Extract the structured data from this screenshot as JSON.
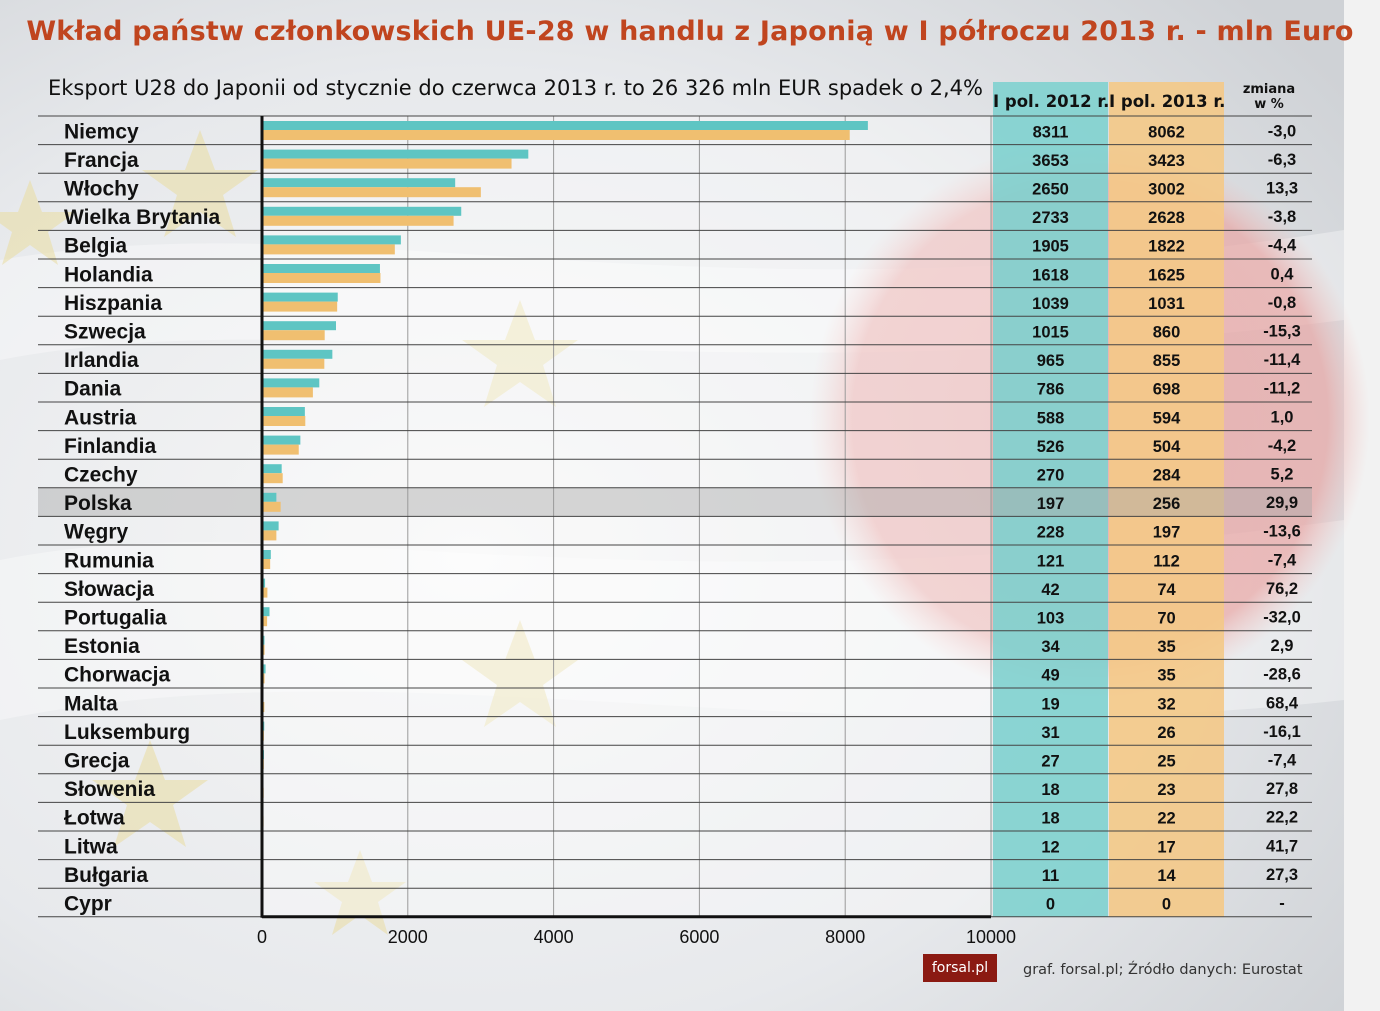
{
  "title": "Wkład państw członkowskich UE-28 w handlu z Japonią w I półroczu 2013 r. - mln Euro",
  "subtitle": "Eksport U28 do Japonii od stycznie do czerwca 2013 r. to 26 326 mln EUR spadek o 2,4%",
  "columns": {
    "y2012": "I pol. 2012 r.",
    "y2013": "I pol. 2013 r.",
    "change_line1": "zmiana",
    "change_line2": "w %"
  },
  "source": "graf. forsal.pl; Źródło danych: Eurostat",
  "logo": "forsal.pl",
  "colors": {
    "series2012": "#5ec5c3",
    "series2013": "#f0bf70",
    "col2012": "#7fd2cf",
    "col2013": "#f4c987",
    "title": "#c0451f"
  },
  "chart_data": {
    "type": "bar",
    "orientation": "horizontal",
    "title": "Wkład państw członkowskich UE-28 w handlu z Japonią w I półroczu 2013 r. - mln Euro",
    "categories": [
      "Niemcy",
      "Francja",
      "Włochy",
      "Wielka Brytania",
      "Belgia",
      "Holandia",
      "Hiszpania",
      "Szwecja",
      "Irlandia",
      "Dania",
      "Austria",
      "Finlandia",
      "Czechy",
      "Polska",
      "Węgry",
      "Rumunia",
      "Słowacja",
      "Portugalia",
      "Estonia",
      "Chorwacja",
      "Malta",
      "Luksemburg",
      "Grecja",
      "Słowenia",
      "Łotwa",
      "Litwa",
      "Bułgaria",
      "Cypr"
    ],
    "series": [
      {
        "name": "I pol. 2012 r.",
        "values": [
          8311,
          3653,
          2650,
          2733,
          1905,
          1618,
          1039,
          1015,
          965,
          786,
          588,
          526,
          270,
          197,
          228,
          121,
          42,
          103,
          34,
          49,
          19,
          31,
          27,
          18,
          18,
          12,
          11,
          0
        ]
      },
      {
        "name": "I pol. 2013 r.",
        "values": [
          8062,
          3423,
          3002,
          2628,
          1822,
          1625,
          1031,
          860,
          855,
          698,
          594,
          504,
          284,
          256,
          197,
          112,
          74,
          70,
          35,
          35,
          32,
          26,
          25,
          23,
          22,
          17,
          14,
          0
        ]
      }
    ],
    "change_pct": [
      "-3,0",
      "-6,3",
      "13,3",
      "-3,8",
      "-4,4",
      "0,4",
      "-0,8",
      "-15,3",
      "-11,4",
      "-11,2",
      "1,0",
      "-4,2",
      "5,2",
      "29,9",
      "-13,6",
      "-7,4",
      "76,2",
      "-32,0",
      "2,9",
      "-28,6",
      "68,4",
      "-16,1",
      "-7,4",
      "27,8",
      "22,2",
      "41,7",
      "27,3",
      "-"
    ],
    "xlim": [
      0,
      10000
    ],
    "xticks": [
      0,
      2000,
      4000,
      6000,
      8000,
      10000
    ],
    "highlight": "Polska"
  }
}
